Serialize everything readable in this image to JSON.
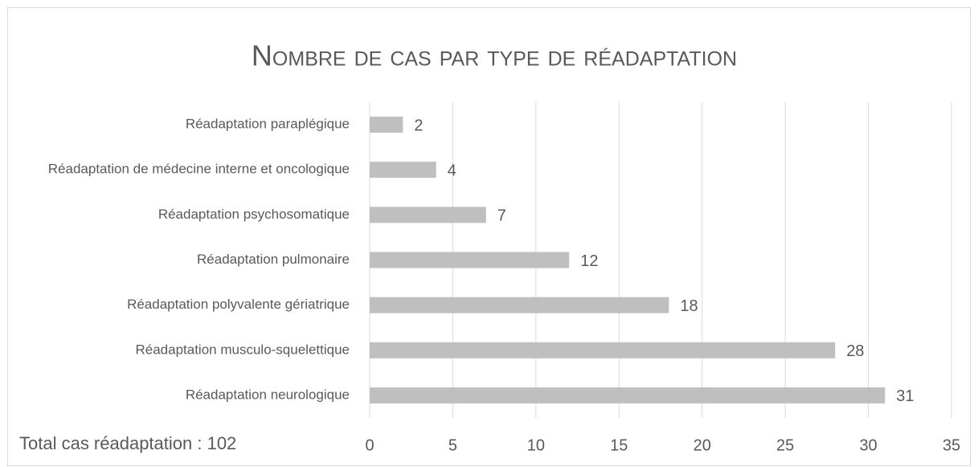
{
  "chart_data": {
    "type": "bar",
    "orientation": "horizontal",
    "title": "Nombre de cas par type de réadaptation",
    "annotation": "Total cas réadaptation : 102",
    "categories": [
      "Réadaptation paraplégique",
      "Réadaptation de médecine interne et oncologique",
      "Réadaptation psychosomatique",
      "Réadaptation pulmonaire",
      "Réadaptation polyvalente gériatrique",
      "Réadaptation musculo-squelettique",
      "Réadaptation neurologique"
    ],
    "values": [
      2,
      4,
      7,
      12,
      18,
      28,
      31
    ],
    "color": "#bfbfbf",
    "xlim": [
      0,
      35
    ],
    "xticks": [
      0,
      5,
      10,
      15,
      20,
      25,
      30,
      35
    ],
    "grid": true
  }
}
